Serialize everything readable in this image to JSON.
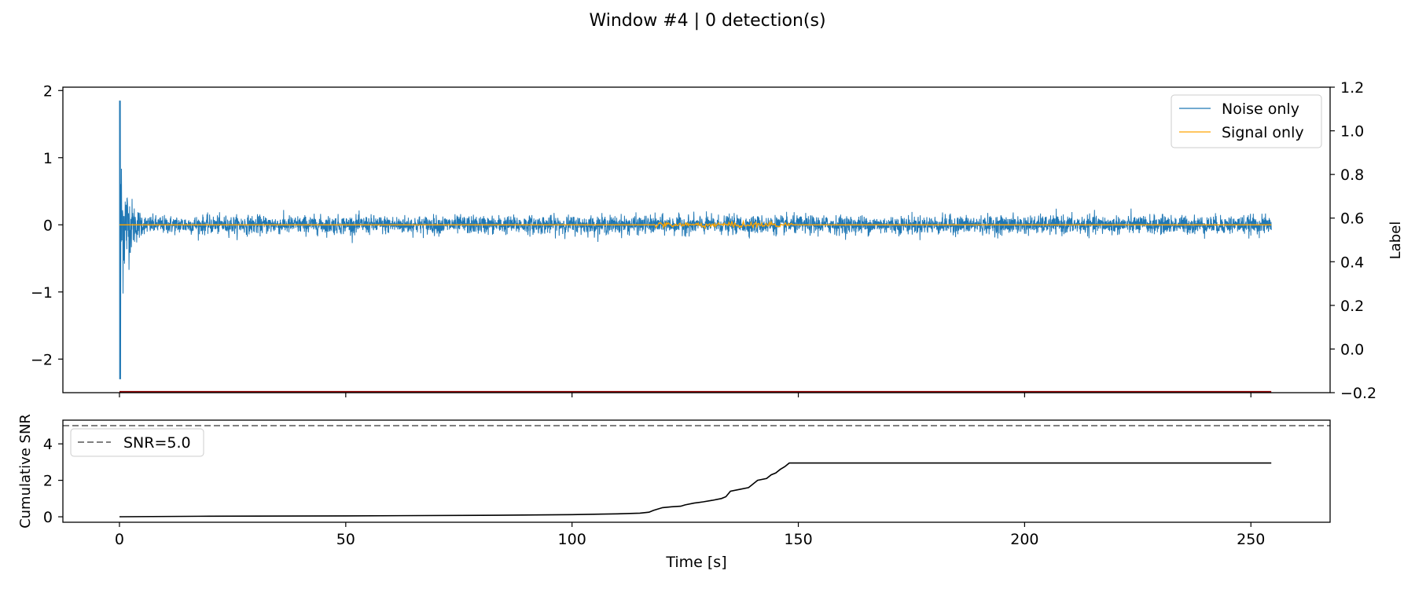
{
  "figure": {
    "suptitle": "Window #4 | 0 detection(s)"
  },
  "colors": {
    "noise": "#1f77b4",
    "signal": "#ffa500",
    "label_line": "#8b0000",
    "snr_curve": "#000000",
    "threshold": "#808080"
  },
  "chart_data": [
    {
      "type": "line",
      "name": "waveform",
      "x_range": [
        -12.5,
        267.5
      ],
      "ylim": [
        -2.5,
        2.05
      ],
      "yticks": [
        "−2",
        "−1",
        "0",
        "1",
        "2"
      ],
      "ytick_values": [
        -2,
        -1,
        0,
        1,
        2
      ],
      "xticks_shared": [
        0,
        50,
        100,
        150,
        200,
        250
      ],
      "secondary_axis": {
        "label": "Label",
        "ylim": [
          -0.2,
          1.2
        ],
        "ticks": [
          "−0.2",
          "0.0",
          "0.2",
          "0.4",
          "0.6",
          "0.8",
          "1.0",
          "1.2"
        ],
        "tick_values": [
          -0.2,
          0.0,
          0.2,
          0.4,
          0.6,
          0.8,
          1.0,
          1.2
        ],
        "label_series_value": -0.2
      },
      "legend": {
        "position": "top-right"
      },
      "series": [
        {
          "name": "Noise only",
          "color_key": "noise",
          "description_points": {
            "t_start": 0,
            "t_end": 254.5,
            "peak_max": 1.85,
            "peak_min": -2.3,
            "initial_burst_end": 5,
            "steady_amplitude": 0.15
          }
        },
        {
          "name": "Signal only",
          "color_key": "signal",
          "description_points": {
            "t_start": 0,
            "t_end": 254.5,
            "active_start": 118,
            "active_end": 149,
            "active_amplitude": 0.02
          }
        }
      ]
    },
    {
      "type": "line",
      "name": "cumulative-snr",
      "ylabel": "Cumulative SNR",
      "xlabel": "Time [s]",
      "x_range": [
        -12.5,
        267.5
      ],
      "ylim": [
        -0.3,
        5.3
      ],
      "yticks": [
        "0",
        "2",
        "4"
      ],
      "ytick_values": [
        0,
        2,
        4
      ],
      "xticks": [
        "0",
        "50",
        "100",
        "150",
        "200",
        "250"
      ],
      "xtick_values": [
        0,
        50,
        100,
        150,
        200,
        250
      ],
      "threshold": {
        "label": "SNR=5.0",
        "value": 5.0
      },
      "legend": {
        "position": "top-left"
      },
      "x": [
        0,
        20,
        50,
        80,
        100,
        110,
        115,
        117,
        118,
        120,
        122,
        124,
        125,
        127,
        129,
        131,
        133,
        134,
        135,
        137,
        139,
        140,
        141,
        143,
        144,
        145,
        146,
        147,
        148,
        148.5,
        160,
        200,
        254.5
      ],
      "y": [
        0.0,
        0.03,
        0.05,
        0.08,
        0.12,
        0.16,
        0.2,
        0.25,
        0.35,
        0.5,
        0.55,
        0.58,
        0.65,
        0.75,
        0.82,
        0.9,
        1.0,
        1.1,
        1.4,
        1.5,
        1.6,
        1.8,
        2.0,
        2.1,
        2.3,
        2.4,
        2.6,
        2.75,
        2.95,
        2.95,
        2.95,
        2.95,
        2.95
      ]
    }
  ]
}
